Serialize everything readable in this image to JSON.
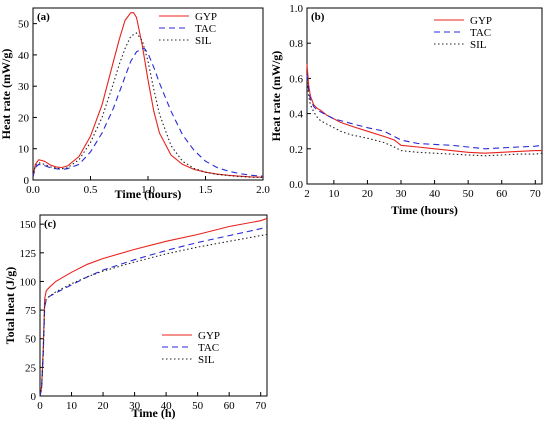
{
  "chart_data": [
    {
      "type": "line",
      "panel": "(a)",
      "xlabel": "Time (hours)",
      "ylabel": "Heat rate (mW/g)",
      "xlim": [
        0,
        2.0
      ],
      "ylim": [
        0,
        55
      ],
      "xticks": [
        0.0,
        0.5,
        1.0,
        1.5,
        2.0
      ],
      "xticklabels": [
        "0.0",
        "0.5",
        "1.0",
        "1.5",
        "2.0"
      ],
      "yticks": [
        0,
        10,
        20,
        30,
        40,
        50
      ],
      "yticklabels": [
        "0",
        "10",
        "20",
        "30",
        "40",
        "50"
      ],
      "legend_position": "top-right",
      "series": [
        {
          "name": "GYP",
          "color": "#e8231e",
          "dash": "solid",
          "x": [
            0,
            0.02,
            0.05,
            0.1,
            0.15,
            0.2,
            0.25,
            0.3,
            0.4,
            0.5,
            0.6,
            0.7,
            0.75,
            0.8,
            0.85,
            0.875,
            0.9,
            0.95,
            1.0,
            1.05,
            1.1,
            1.2,
            1.3,
            1.4,
            1.5,
            1.6,
            1.7,
            1.8,
            1.9,
            2.0
          ],
          "y": [
            1,
            5,
            6.5,
            6,
            4.8,
            4.2,
            4,
            4.5,
            7.5,
            14,
            24,
            38,
            45,
            51,
            53.5,
            53.5,
            52,
            43,
            32,
            22,
            15,
            8,
            5,
            3.4,
            2.5,
            1.9,
            1.5,
            1.2,
            1.0,
            0.9
          ]
        },
        {
          "name": "TAC",
          "color": "#2a2ad8",
          "dash": "6,4",
          "x": [
            0,
            0.02,
            0.05,
            0.1,
            0.15,
            0.2,
            0.25,
            0.3,
            0.4,
            0.5,
            0.6,
            0.7,
            0.75,
            0.8,
            0.85,
            0.9,
            0.95,
            0.97,
            1.0,
            1.05,
            1.1,
            1.2,
            1.3,
            1.4,
            1.5,
            1.6,
            1.7,
            1.8,
            1.9,
            2.0
          ],
          "y": [
            1,
            4,
            5,
            4.6,
            3.9,
            3.6,
            3.4,
            3.6,
            5,
            9,
            15,
            23,
            28,
            33,
            38,
            41,
            42,
            42,
            40.5,
            36,
            31,
            22,
            14.5,
            9.5,
            6,
            4,
            2.8,
            2,
            1.5,
            1.2
          ]
        },
        {
          "name": "SIL",
          "color": "#222222",
          "dash": "1.5,2.5",
          "x": [
            0,
            0.02,
            0.05,
            0.1,
            0.15,
            0.2,
            0.25,
            0.3,
            0.4,
            0.5,
            0.6,
            0.7,
            0.75,
            0.8,
            0.85,
            0.9,
            0.95,
            1.0,
            1.05,
            1.1,
            1.2,
            1.3,
            1.4,
            1.5,
            1.6,
            1.7,
            1.8,
            1.9,
            2.0
          ],
          "y": [
            1,
            4.5,
            5.5,
            5,
            4.2,
            3.8,
            3.6,
            3.9,
            6.5,
            12,
            20,
            31,
            37,
            42,
            46,
            47,
            44.5,
            38,
            29,
            21,
            11,
            6,
            3.7,
            2.5,
            1.8,
            1.4,
            1.1,
            0.9,
            0.8
          ]
        }
      ]
    },
    {
      "type": "line",
      "panel": "(b)",
      "xlabel": "Time (hours)",
      "ylabel": "Heat rate (mW/g)",
      "xlim": [
        2,
        72
      ],
      "ylim": [
        0,
        1.0
      ],
      "xticks": [
        2,
        10,
        20,
        30,
        40,
        50,
        60,
        70
      ],
      "xticklabels": [
        "2",
        "10",
        "20",
        "30",
        "40",
        "50",
        "60",
        "70"
      ],
      "yticks": [
        0.0,
        0.2,
        0.4,
        0.6,
        0.8,
        1.0
      ],
      "yticklabels": [
        "0.0",
        "0.2",
        "0.4",
        "0.6",
        "0.8",
        "1.0"
      ],
      "legend_position": "top-right",
      "series": [
        {
          "name": "GYP",
          "color": "#e8231e",
          "dash": "solid",
          "x": [
            2,
            2.5,
            3,
            4,
            5,
            6,
            8,
            10,
            12,
            15,
            20,
            25,
            28,
            30,
            35,
            40,
            45,
            50,
            55,
            60,
            65,
            70,
            72
          ],
          "y": [
            0.68,
            0.56,
            0.5,
            0.45,
            0.43,
            0.42,
            0.39,
            0.37,
            0.35,
            0.33,
            0.3,
            0.27,
            0.25,
            0.22,
            0.21,
            0.2,
            0.19,
            0.18,
            0.175,
            0.18,
            0.185,
            0.19,
            0.19
          ]
        },
        {
          "name": "TAC",
          "color": "#2a2ad8",
          "dash": "6,4",
          "x": [
            2,
            2.5,
            3,
            4,
            5,
            6,
            8,
            10,
            12,
            15,
            20,
            25,
            28,
            30,
            35,
            40,
            45,
            50,
            55,
            60,
            65,
            70,
            72
          ],
          "y": [
            0.62,
            0.53,
            0.48,
            0.44,
            0.42,
            0.41,
            0.39,
            0.37,
            0.36,
            0.345,
            0.32,
            0.3,
            0.27,
            0.25,
            0.23,
            0.225,
            0.22,
            0.21,
            0.2,
            0.205,
            0.21,
            0.215,
            0.22
          ]
        },
        {
          "name": "SIL",
          "color": "#222222",
          "dash": "1.5,2.5",
          "x": [
            2,
            2.5,
            3,
            4,
            5,
            6,
            8,
            10,
            12,
            15,
            20,
            25,
            28,
            30,
            35,
            40,
            45,
            50,
            55,
            60,
            65,
            70,
            72
          ],
          "y": [
            0.6,
            0.5,
            0.45,
            0.41,
            0.38,
            0.36,
            0.34,
            0.32,
            0.3,
            0.28,
            0.26,
            0.235,
            0.21,
            0.19,
            0.18,
            0.175,
            0.17,
            0.165,
            0.16,
            0.165,
            0.17,
            0.17,
            0.175
          ]
        }
      ]
    },
    {
      "type": "line",
      "panel": "(c)",
      "xlabel": "Time (h)",
      "ylabel": "Total heat (J/g)",
      "xlim": [
        0,
        72
      ],
      "ylim": [
        0,
        158
      ],
      "xticks": [
        0,
        10,
        20,
        30,
        40,
        50,
        60,
        70
      ],
      "xticklabels": [
        "0",
        "10",
        "20",
        "30",
        "40",
        "50",
        "60",
        "70"
      ],
      "yticks": [
        0,
        25,
        50,
        75,
        100,
        125,
        150
      ],
      "yticklabels": [
        "0",
        "25",
        "50",
        "75",
        "100",
        "125",
        "150"
      ],
      "legend_position": "bottom-right",
      "series": [
        {
          "name": "GYP",
          "color": "#e8231e",
          "dash": "solid",
          "x": [
            0,
            0.5,
            1,
            1.5,
            2,
            3,
            5,
            10,
            15,
            20,
            30,
            40,
            50,
            60,
            70,
            72
          ],
          "y": [
            0,
            8,
            40,
            85,
            92,
            95,
            100,
            108,
            115,
            120,
            128,
            135,
            141,
            148,
            153,
            155
          ]
        },
        {
          "name": "TAC",
          "color": "#2a2ad8",
          "dash": "6,4",
          "x": [
            0,
            0.5,
            1,
            1.5,
            2,
            3,
            5,
            10,
            15,
            20,
            30,
            40,
            50,
            60,
            70,
            72
          ],
          "y": [
            0,
            6,
            35,
            78,
            84,
            87,
            90,
            97,
            104,
            110,
            119,
            127,
            134,
            140,
            146,
            148
          ]
        },
        {
          "name": "SIL",
          "color": "#222222",
          "dash": "1.5,2.5",
          "x": [
            0,
            0.5,
            1,
            1.5,
            2,
            3,
            5,
            10,
            15,
            20,
            30,
            40,
            50,
            60,
            70,
            72
          ],
          "y": [
            0,
            7,
            38,
            80,
            85,
            87,
            91,
            98,
            104,
            109,
            117,
            124,
            130,
            135,
            140,
            141
          ]
        }
      ]
    }
  ]
}
